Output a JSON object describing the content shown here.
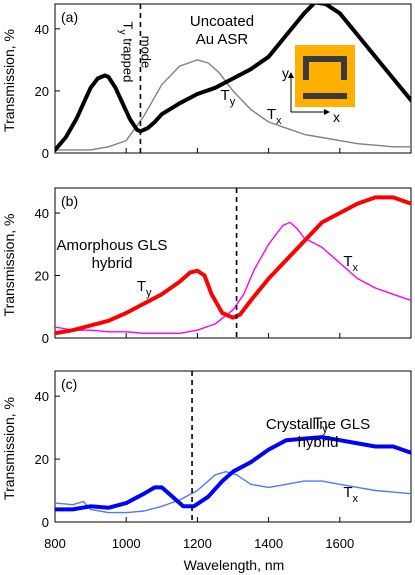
{
  "figure": {
    "xlabel": "Wavelength, nm",
    "ylabel": "Transmission, %",
    "xticks": [
      800,
      1000,
      1200,
      1400,
      1600
    ],
    "xlim": [
      800,
      1800
    ]
  },
  "colors": {
    "panel_a_ty": "#000000",
    "panel_a_tx": "#808080",
    "panel_b_ty": "#ff0000",
    "panel_b_tx": "#ff00ff",
    "panel_c_ty": "#0000ff",
    "panel_c_tx": "#4d79ff",
    "inset_square": "#ffb000",
    "inset_shape": "#3a3a3a"
  },
  "chart_data": [
    {
      "type": "line",
      "panel": "(a)",
      "annotation": [
        "Uncoated",
        "Au ASR"
      ],
      "trapped_mode_label": [
        "T",
        "y",
        " trapped",
        "mode"
      ],
      "trapped_mode_nm": 1040,
      "ylim": [
        0,
        48
      ],
      "yticks": [
        0,
        20,
        40
      ],
      "series": [
        {
          "name": "Ty",
          "x": [
            800,
            830,
            860,
            880,
            900,
            920,
            940,
            950,
            970,
            990,
            1010,
            1030,
            1040,
            1060,
            1080,
            1100,
            1150,
            1200,
            1250,
            1300,
            1350,
            1400,
            1450,
            1500,
            1530,
            1560,
            1600,
            1650,
            1700,
            1750,
            1800
          ],
          "y": [
            1,
            5,
            11,
            16,
            21,
            24,
            25,
            24.5,
            21,
            16,
            11,
            7.5,
            7,
            8,
            10,
            12.5,
            16,
            19,
            21,
            24,
            27,
            31,
            38,
            45,
            48.5,
            48,
            45,
            38,
            31,
            24,
            17
          ]
        },
        {
          "name": "Tx",
          "x": [
            800,
            850,
            900,
            950,
            1000,
            1050,
            1100,
            1150,
            1200,
            1230,
            1260,
            1300,
            1350,
            1400,
            1450,
            1500,
            1550,
            1600,
            1650,
            1700,
            1750,
            1800
          ],
          "y": [
            1,
            1,
            1,
            2,
            4,
            12,
            22,
            28,
            30,
            29,
            26,
            20,
            14,
            10,
            8,
            6,
            5,
            4,
            3,
            2.5,
            2,
            2
          ]
        }
      ],
      "labels": [
        {
          "text": "T",
          "sub": "y",
          "x": 1265,
          "y": 17
        },
        {
          "text": "T",
          "sub": "x",
          "x": 1395,
          "y": 11
        }
      ]
    },
    {
      "type": "line",
      "panel": "(b)",
      "annotation": [
        "Amorphous GLS",
        "hybrid"
      ],
      "trapped_mode_nm": 1310,
      "ylim": [
        0,
        48
      ],
      "yticks": [
        0,
        20,
        40
      ],
      "series": [
        {
          "name": "Ty",
          "x": [
            800,
            850,
            900,
            950,
            1000,
            1050,
            1100,
            1150,
            1180,
            1200,
            1220,
            1240,
            1270,
            1300,
            1320,
            1350,
            1400,
            1450,
            1500,
            1550,
            1600,
            1650,
            1700,
            1750,
            1800
          ],
          "y": [
            1.5,
            2.5,
            4,
            5.5,
            8,
            11,
            14,
            18,
            21,
            21.5,
            20,
            14,
            8,
            6.5,
            7.5,
            12,
            19,
            25,
            31,
            37,
            40,
            43,
            45,
            45,
            43
          ]
        },
        {
          "name": "Tx",
          "x": [
            800,
            850,
            900,
            950,
            1000,
            1050,
            1100,
            1150,
            1200,
            1250,
            1300,
            1330,
            1360,
            1400,
            1440,
            1460,
            1480,
            1500,
            1550,
            1600,
            1650,
            1700,
            1750,
            1800
          ],
          "y": [
            3.5,
            2.5,
            2.5,
            2,
            2,
            1.5,
            1.5,
            1.5,
            2.5,
            4.5,
            9,
            14,
            22,
            30,
            36,
            37,
            35,
            32,
            29,
            24,
            19,
            16,
            14,
            12
          ]
        }
      ],
      "labels": [
        {
          "text": "T",
          "sub": "y",
          "x": 1030,
          "y": 15
        },
        {
          "text": "T",
          "sub": "x",
          "x": 1610,
          "y": 23
        }
      ]
    },
    {
      "type": "line",
      "panel": "(c)",
      "annotation": [
        "Crystalline GLS",
        "hybrid"
      ],
      "trapped_mode_nm": 1185,
      "ylim": [
        0,
        48
      ],
      "yticks": [
        0,
        20,
        40
      ],
      "series": [
        {
          "name": "Ty",
          "x": [
            800,
            850,
            900,
            950,
            1000,
            1050,
            1080,
            1100,
            1130,
            1160,
            1190,
            1230,
            1270,
            1300,
            1350,
            1400,
            1450,
            1500,
            1550,
            1600,
            1650,
            1700,
            1750,
            1800
          ],
          "y": [
            4,
            4,
            5,
            4.5,
            6,
            9,
            11,
            11,
            8,
            5,
            5,
            8,
            13,
            16,
            19,
            23,
            26,
            26.5,
            27,
            26,
            25,
            24,
            24,
            22
          ]
        },
        {
          "name": "Tx",
          "x": [
            800,
            850,
            880,
            900,
            950,
            1000,
            1050,
            1100,
            1150,
            1200,
            1250,
            1280,
            1310,
            1350,
            1400,
            1450,
            1500,
            1550,
            1600,
            1650,
            1700,
            1750,
            1800
          ],
          "y": [
            6,
            5.5,
            6.5,
            4,
            3,
            3,
            3.5,
            5,
            7,
            10,
            15,
            16,
            15,
            12,
            11,
            12,
            13,
            13,
            12,
            11,
            10,
            9.5,
            9
          ]
        }
      ],
      "labels": [
        {
          "text": "T",
          "sub": "y",
          "x": 1525,
          "y": 30
        },
        {
          "text": "T",
          "sub": "x",
          "x": 1610,
          "y": 8
        }
      ]
    }
  ]
}
